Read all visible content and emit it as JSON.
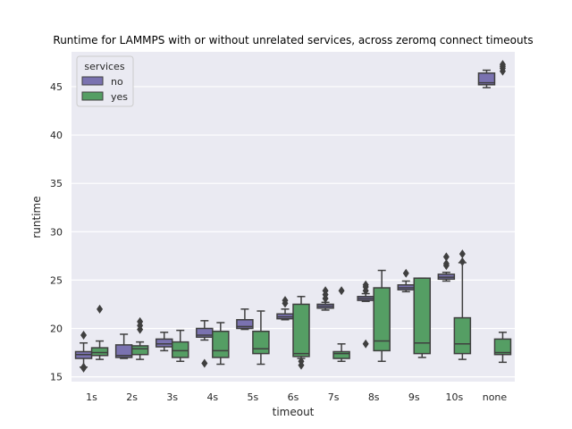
{
  "chart_data": {
    "type": "box",
    "title": "Runtime for LAMMPS with or without unrelated services, across zeromq connect timeouts",
    "xlabel": "timeout",
    "ylabel": "runtime",
    "ylim": [
      14.5,
      48.6
    ],
    "yticks": [
      15,
      20,
      25,
      30,
      35,
      40,
      45
    ],
    "categories": [
      "1s",
      "2s",
      "3s",
      "4s",
      "5s",
      "6s",
      "7s",
      "8s",
      "9s",
      "10s",
      "none"
    ],
    "grid": true,
    "legend": {
      "title": "services",
      "position": "top-left"
    },
    "series": [
      {
        "name": "no",
        "color": "#7a72b0",
        "boxes": [
          {
            "category": "1s",
            "whislo": 16.0,
            "q1": 16.9,
            "med": 17.3,
            "q3": 17.6,
            "whishi": 18.5,
            "fliers": [
              19.3,
              16.0,
              15.9
            ]
          },
          {
            "category": "2s",
            "whislo": 16.9,
            "q1": 17.0,
            "med": 17.2,
            "q3": 18.3,
            "whishi": 19.4,
            "fliers": []
          },
          {
            "category": "3s",
            "whislo": 17.7,
            "q1": 18.1,
            "med": 18.4,
            "q3": 18.9,
            "whishi": 19.6,
            "fliers": []
          },
          {
            "category": "4s",
            "whislo": 18.8,
            "q1": 19.1,
            "med": 19.3,
            "q3": 20.0,
            "whishi": 20.8,
            "fliers": [
              16.4
            ]
          },
          {
            "category": "5s",
            "whislo": 19.9,
            "q1": 20.0,
            "med": 20.2,
            "q3": 20.9,
            "whishi": 22.0,
            "fliers": []
          },
          {
            "category": "6s",
            "whislo": 20.9,
            "q1": 21.0,
            "med": 21.2,
            "q3": 21.5,
            "whishi": 22.0,
            "fliers": [
              22.6,
              22.9
            ]
          },
          {
            "category": "7s",
            "whislo": 21.9,
            "q1": 22.1,
            "med": 22.3,
            "q3": 22.5,
            "whishi": 22.7,
            "fliers": [
              23.1,
              23.5,
              23.9
            ]
          },
          {
            "category": "8s",
            "whislo": 22.8,
            "q1": 22.9,
            "med": 23.1,
            "q3": 23.3,
            "whishi": 23.6,
            "fliers": [
              23.9,
              24.3,
              24.5,
              18.4
            ]
          },
          {
            "category": "9s",
            "whislo": 23.8,
            "q1": 24.0,
            "med": 24.2,
            "q3": 24.5,
            "whishi": 24.9,
            "fliers": [
              25.7
            ]
          },
          {
            "category": "10s",
            "whislo": 24.9,
            "q1": 25.1,
            "med": 25.3,
            "q3": 25.6,
            "whishi": 25.8,
            "fliers": [
              26.5,
              26.7,
              27.4
            ]
          },
          {
            "category": "none",
            "whislo": 44.9,
            "q1": 45.2,
            "med": 45.4,
            "q3": 46.4,
            "whishi": 46.7,
            "fliers": []
          }
        ]
      },
      {
        "name": "yes",
        "color": "#559e64",
        "boxes": [
          {
            "category": "1s",
            "whislo": 16.8,
            "q1": 17.2,
            "med": 17.5,
            "q3": 18.0,
            "whishi": 18.7,
            "fliers": [
              22.0
            ]
          },
          {
            "category": "2s",
            "whislo": 16.8,
            "q1": 17.3,
            "med": 17.9,
            "q3": 18.2,
            "whishi": 18.6,
            "fliers": [
              19.9,
              20.3,
              20.7
            ]
          },
          {
            "category": "3s",
            "whislo": 16.6,
            "q1": 17.0,
            "med": 17.7,
            "q3": 18.6,
            "whishi": 19.8,
            "fliers": []
          },
          {
            "category": "4s",
            "whislo": 16.3,
            "q1": 17.0,
            "med": 17.7,
            "q3": 19.7,
            "whishi": 20.6,
            "fliers": []
          },
          {
            "category": "5s",
            "whislo": 16.3,
            "q1": 17.4,
            "med": 17.9,
            "q3": 19.7,
            "whishi": 21.8,
            "fliers": []
          },
          {
            "category": "6s",
            "whislo": 16.9,
            "q1": 17.1,
            "med": 17.4,
            "q3": 22.5,
            "whishi": 23.3,
            "fliers": [
              16.6,
              16.2
            ]
          },
          {
            "category": "7s",
            "whislo": 16.6,
            "q1": 16.9,
            "med": 17.4,
            "q3": 17.6,
            "whishi": 18.4,
            "fliers": [
              23.9
            ]
          },
          {
            "category": "8s",
            "whislo": 16.6,
            "q1": 17.7,
            "med": 18.7,
            "q3": 24.2,
            "whishi": 26.0,
            "fliers": []
          },
          {
            "category": "9s",
            "whislo": 17.0,
            "q1": 17.4,
            "med": 18.5,
            "q3": 25.2,
            "whishi": 25.2,
            "fliers": []
          },
          {
            "category": "10s",
            "whislo": 16.8,
            "q1": 17.4,
            "med": 18.4,
            "q3": 21.1,
            "whishi": 26.8,
            "fliers": [
              26.9,
              27.7
            ]
          },
          {
            "category": "none",
            "whislo": 16.5,
            "q1": 17.3,
            "med": 17.5,
            "q3": 18.9,
            "whishi": 19.6,
            "fliers": [
              46.6,
              46.9,
              47.1,
              47.3
            ]
          }
        ]
      }
    ]
  }
}
